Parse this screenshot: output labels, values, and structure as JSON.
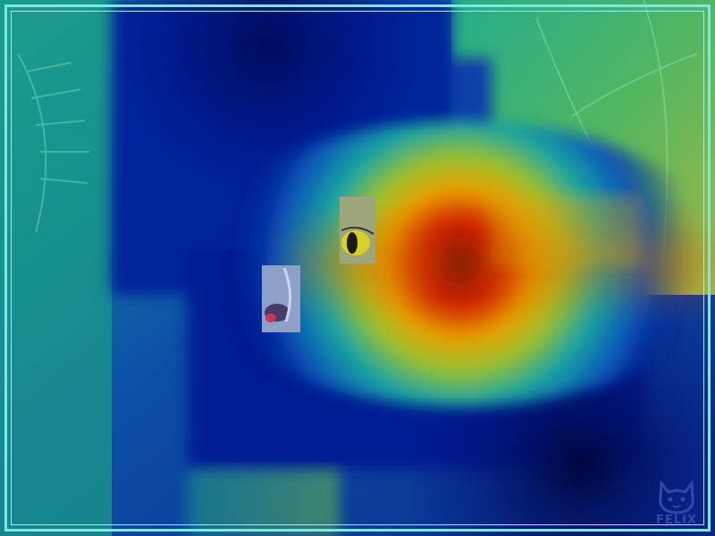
{
  "image": {
    "description_kind": "heatmap overlay on photograph",
    "colors": {
      "frame": "#7fe6e0",
      "frame_inner": "#9cf0ea",
      "heat_low": "#00007f",
      "heat_mid": "#00c8c8",
      "heat_high": "#ff2000",
      "heat_peak": "#2a0000",
      "foliage": "#2f8f7a",
      "logo": "#3a4fb0"
    }
  },
  "watermark": {
    "icon": "cat-face-icon",
    "text": "FELIX"
  }
}
